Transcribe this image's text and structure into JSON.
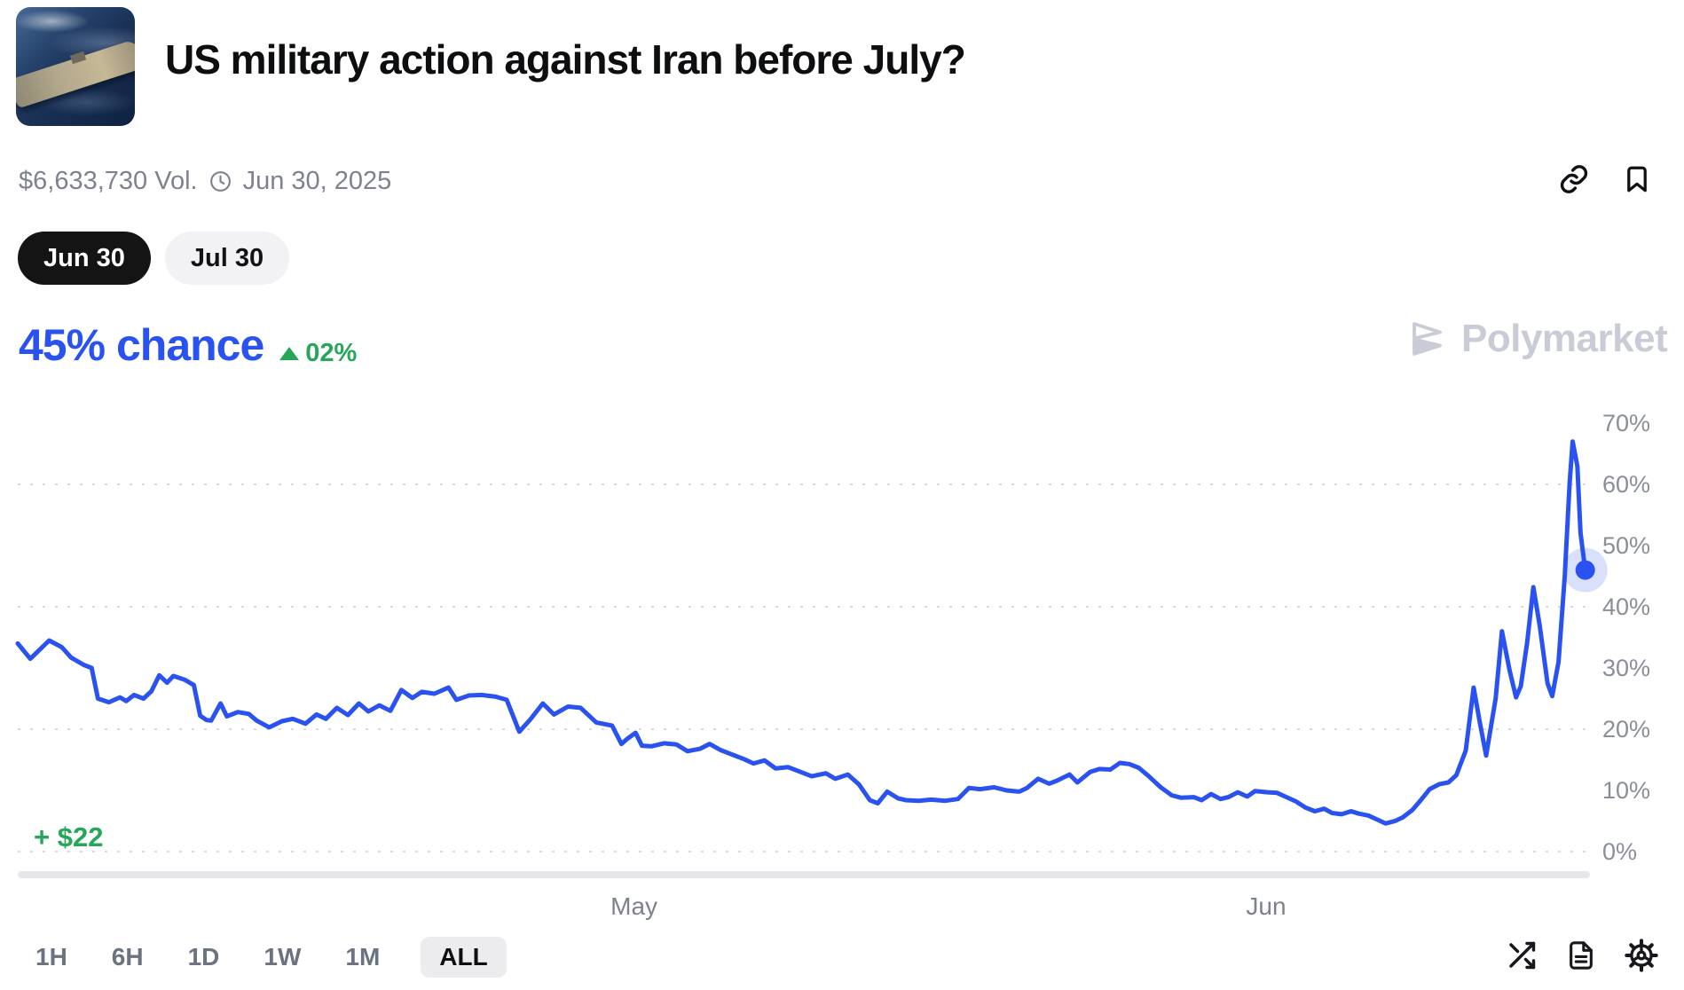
{
  "header": {
    "title": "US military action against Iran before July?",
    "volume": "$6,633,730 Vol.",
    "end_date": "Jun 30, 2025",
    "outcome_tabs": [
      {
        "label": "Jun 30",
        "active": true
      },
      {
        "label": "Jul 30",
        "active": false
      }
    ]
  },
  "chance": {
    "value": "45% chance",
    "change": "02%",
    "direction": "up"
  },
  "watermark": {
    "text": "Polymarket"
  },
  "footer": {
    "timeframes": [
      "1H",
      "6H",
      "1D",
      "1W",
      "1M",
      "ALL"
    ],
    "active_timeframe": "ALL"
  },
  "colors": {
    "accent_blue": "#2952f0",
    "green": "#27a65a",
    "watermark_gray": "#c9ccd6",
    "grid_gray": "#d9dadd",
    "tick_gray": "#8a8e96"
  },
  "chart_data": {
    "type": "line",
    "series_name": "Jun 30 Yes probability",
    "unit": "%",
    "ylim": [
      0,
      70
    ],
    "yticks": [
      0,
      10,
      20,
      30,
      40,
      50,
      60,
      70
    ],
    "gridline_values": [
      0,
      20,
      40,
      60
    ],
    "grid": "dotted-horizontal",
    "legend": "none",
    "x_axis_labels": [
      {
        "label": "May",
        "f": 0.392
      },
      {
        "label": "Jun",
        "f": 0.794
      }
    ],
    "current_value_pct": 45,
    "change_pct": 2,
    "peak_value_pct": 67,
    "profit_label": "+ $22",
    "points": [
      [
        0.0,
        34.0
      ],
      [
        0.008,
        31.5
      ],
      [
        0.02,
        34.5
      ],
      [
        0.028,
        33.4
      ],
      [
        0.034,
        31.7
      ],
      [
        0.042,
        30.5
      ],
      [
        0.047,
        30.0
      ],
      [
        0.051,
        25.0
      ],
      [
        0.058,
        24.4
      ],
      [
        0.065,
        25.2
      ],
      [
        0.069,
        24.6
      ],
      [
        0.074,
        25.6
      ],
      [
        0.08,
        25.0
      ],
      [
        0.085,
        26.2
      ],
      [
        0.09,
        28.8
      ],
      [
        0.095,
        27.6
      ],
      [
        0.099,
        28.7
      ],
      [
        0.106,
        28.1
      ],
      [
        0.112,
        27.2
      ],
      [
        0.116,
        22.2
      ],
      [
        0.12,
        21.5
      ],
      [
        0.123,
        21.4
      ],
      [
        0.129,
        24.2
      ],
      [
        0.133,
        22.1
      ],
      [
        0.14,
        22.8
      ],
      [
        0.147,
        22.5
      ],
      [
        0.152,
        21.4
      ],
      [
        0.16,
        20.3
      ],
      [
        0.168,
        21.3
      ],
      [
        0.175,
        21.7
      ],
      [
        0.183,
        20.9
      ],
      [
        0.19,
        22.4
      ],
      [
        0.196,
        21.7
      ],
      [
        0.203,
        23.5
      ],
      [
        0.21,
        22.3
      ],
      [
        0.217,
        24.2
      ],
      [
        0.223,
        22.9
      ],
      [
        0.23,
        23.9
      ],
      [
        0.237,
        23.0
      ],
      [
        0.244,
        26.4
      ],
      [
        0.251,
        25.1
      ],
      [
        0.257,
        26.1
      ],
      [
        0.265,
        25.8
      ],
      [
        0.274,
        26.8
      ],
      [
        0.279,
        24.8
      ],
      [
        0.287,
        25.5
      ],
      [
        0.295,
        25.6
      ],
      [
        0.304,
        25.3
      ],
      [
        0.311,
        24.8
      ],
      [
        0.319,
        19.6
      ],
      [
        0.326,
        21.6
      ],
      [
        0.334,
        24.2
      ],
      [
        0.341,
        22.4
      ],
      [
        0.35,
        23.7
      ],
      [
        0.358,
        23.5
      ],
      [
        0.368,
        21.1
      ],
      [
        0.378,
        20.6
      ],
      [
        0.384,
        17.6
      ],
      [
        0.388,
        18.5
      ],
      [
        0.393,
        19.4
      ],
      [
        0.397,
        17.3
      ],
      [
        0.403,
        17.2
      ],
      [
        0.411,
        17.7
      ],
      [
        0.419,
        17.5
      ],
      [
        0.426,
        16.4
      ],
      [
        0.434,
        16.8
      ],
      [
        0.44,
        17.6
      ],
      [
        0.447,
        16.6
      ],
      [
        0.454,
        15.9
      ],
      [
        0.462,
        15.1
      ],
      [
        0.468,
        14.4
      ],
      [
        0.475,
        14.9
      ],
      [
        0.482,
        13.6
      ],
      [
        0.49,
        13.8
      ],
      [
        0.497,
        13.1
      ],
      [
        0.505,
        12.3
      ],
      [
        0.514,
        12.8
      ],
      [
        0.52,
        11.9
      ],
      [
        0.528,
        12.6
      ],
      [
        0.535,
        11.0
      ],
      [
        0.542,
        8.4
      ],
      [
        0.547,
        7.9
      ],
      [
        0.553,
        9.8
      ],
      [
        0.56,
        8.7
      ],
      [
        0.565,
        8.4
      ],
      [
        0.573,
        8.3
      ],
      [
        0.581,
        8.5
      ],
      [
        0.59,
        8.3
      ],
      [
        0.598,
        8.6
      ],
      [
        0.605,
        10.4
      ],
      [
        0.612,
        10.2
      ],
      [
        0.621,
        10.5
      ],
      [
        0.629,
        10.0
      ],
      [
        0.637,
        9.8
      ],
      [
        0.642,
        10.4
      ],
      [
        0.649,
        11.9
      ],
      [
        0.656,
        11.1
      ],
      [
        0.661,
        11.6
      ],
      [
        0.669,
        12.6
      ],
      [
        0.674,
        11.3
      ],
      [
        0.682,
        13.0
      ],
      [
        0.688,
        13.5
      ],
      [
        0.695,
        13.4
      ],
      [
        0.701,
        14.5
      ],
      [
        0.707,
        14.3
      ],
      [
        0.713,
        13.7
      ],
      [
        0.719,
        12.4
      ],
      [
        0.727,
        10.5
      ],
      [
        0.734,
        9.2
      ],
      [
        0.74,
        8.8
      ],
      [
        0.748,
        8.9
      ],
      [
        0.753,
        8.4
      ],
      [
        0.759,
        9.4
      ],
      [
        0.765,
        8.6
      ],
      [
        0.77,
        8.9
      ],
      [
        0.776,
        9.7
      ],
      [
        0.782,
        9.0
      ],
      [
        0.787,
        9.9
      ],
      [
        0.795,
        9.7
      ],
      [
        0.801,
        9.6
      ],
      [
        0.807,
        8.9
      ],
      [
        0.813,
        8.2
      ],
      [
        0.819,
        7.2
      ],
      [
        0.825,
        6.6
      ],
      [
        0.831,
        7.0
      ],
      [
        0.836,
        6.3
      ],
      [
        0.842,
        6.1
      ],
      [
        0.848,
        6.6
      ],
      [
        0.853,
        6.2
      ],
      [
        0.859,
        5.9
      ],
      [
        0.865,
        5.2
      ],
      [
        0.87,
        4.6
      ],
      [
        0.876,
        5.0
      ],
      [
        0.881,
        5.6
      ],
      [
        0.887,
        6.8
      ],
      [
        0.893,
        8.6
      ],
      [
        0.898,
        10.2
      ],
      [
        0.904,
        11.0
      ],
      [
        0.91,
        11.3
      ],
      [
        0.915,
        12.5
      ],
      [
        0.921,
        16.5
      ],
      [
        0.926,
        26.8
      ],
      [
        0.93,
        21.0
      ],
      [
        0.934,
        15.7
      ],
      [
        0.94,
        25.0
      ],
      [
        0.944,
        36.0
      ],
      [
        0.949,
        29.5
      ],
      [
        0.953,
        25.2
      ],
      [
        0.956,
        27.0
      ],
      [
        0.96,
        34.0
      ],
      [
        0.964,
        43.2
      ],
      [
        0.968,
        37.0
      ],
      [
        0.973,
        27.5
      ],
      [
        0.976,
        25.4
      ],
      [
        0.98,
        31.0
      ],
      [
        0.984,
        45.0
      ],
      [
        0.987,
        60.0
      ],
      [
        0.989,
        67.0
      ],
      [
        0.992,
        63.0
      ],
      [
        0.994,
        52.0
      ],
      [
        0.997,
        46.0
      ]
    ]
  }
}
